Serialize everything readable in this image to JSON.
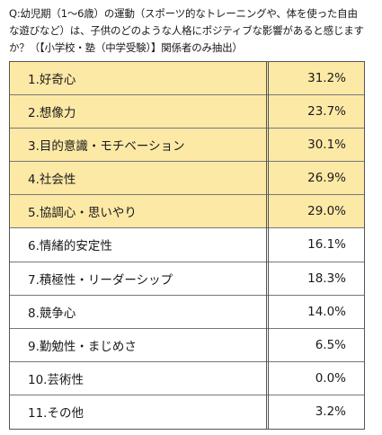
{
  "question": "Q:幼児期（1～6歳）の運動（スポーツ的なトレーニングや、体を使った自由な遊びなど）は、子供のどのような人格にポジティブな影響があると感じますか？（【小学校・塾（中学受験）】関係者のみ抽出）",
  "chart_data": {
    "type": "table",
    "columns": [
      "item",
      "percent"
    ],
    "rows": [
      {
        "label": "1.好奇心",
        "value": 31.2,
        "display": "31.2%",
        "highlight": true
      },
      {
        "label": "2.想像力",
        "value": 23.7,
        "display": "23.7%",
        "highlight": true
      },
      {
        "label": "3.目的意識・モチベーション",
        "value": 30.1,
        "display": "30.1%",
        "highlight": true
      },
      {
        "label": "4.社会性",
        "value": 26.9,
        "display": "26.9%",
        "highlight": true
      },
      {
        "label": "5.協調心・思いやり",
        "value": 29.0,
        "display": "29.0%",
        "highlight": true
      },
      {
        "label": "6.情緒的安定性",
        "value": 16.1,
        "display": "16.1%",
        "highlight": false
      },
      {
        "label": "7.積極性・リーダーシップ",
        "value": 18.3,
        "display": "18.3%",
        "highlight": false
      },
      {
        "label": "8.競争心",
        "value": 14.0,
        "display": "14.0%",
        "highlight": false
      },
      {
        "label": "9.勤勉性・まじめさ",
        "value": 6.5,
        "display": "6.5%",
        "highlight": false
      },
      {
        "label": "10.芸術性",
        "value": 0.0,
        "display": "0.0%",
        "highlight": false
      },
      {
        "label": "11.その他",
        "value": 3.2,
        "display": "3.2%",
        "highlight": false
      }
    ],
    "highlight_color": "#fde9a6"
  }
}
